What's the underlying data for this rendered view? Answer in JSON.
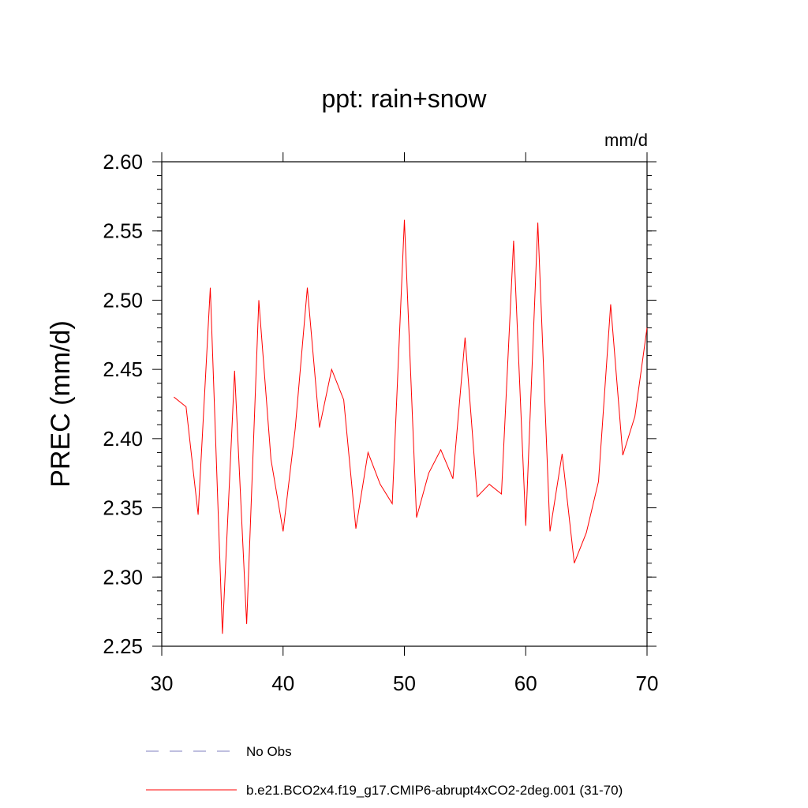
{
  "chart_data": {
    "type": "line",
    "title": "ppt: rain+snow",
    "units_label": "mm/d",
    "ylabel": "PREC  (mm/d)",
    "xlabel": "",
    "xlim": [
      30,
      70
    ],
    "ylim": [
      2.25,
      2.6
    ],
    "x_ticks": [
      30,
      40,
      50,
      60,
      70
    ],
    "y_ticks": [
      2.25,
      2.3,
      2.35,
      2.4,
      2.45,
      2.5,
      2.55,
      2.6
    ],
    "grid": false,
    "legend_position": "bottom",
    "series": [
      {
        "name": "No Obs",
        "color": "#7f7fbf",
        "style": "dashed",
        "x": [],
        "values": []
      },
      {
        "name": "b.e21.BCO2x4.f19_g17.CMIP6-abrupt4xCO2-2deg.001 (31-70)",
        "color": "#ff0000",
        "style": "solid",
        "x": [
          31,
          32,
          33,
          34,
          35,
          36,
          37,
          38,
          39,
          40,
          41,
          42,
          43,
          44,
          45,
          46,
          47,
          48,
          49,
          50,
          51,
          52,
          53,
          54,
          55,
          56,
          57,
          58,
          59,
          60,
          61,
          62,
          63,
          64,
          65,
          66,
          67,
          68,
          69,
          70
        ],
        "values": [
          2.43,
          2.423,
          2.345,
          2.509,
          2.259,
          2.449,
          2.266,
          2.5,
          2.385,
          2.333,
          2.407,
          2.509,
          2.408,
          2.45,
          2.428,
          2.335,
          2.39,
          2.367,
          2.353,
          2.558,
          2.343,
          2.375,
          2.392,
          2.371,
          2.473,
          2.358,
          2.367,
          2.36,
          2.543,
          2.337,
          2.556,
          2.333,
          2.389,
          2.31,
          2.332,
          2.369,
          2.497,
          2.388,
          2.416,
          2.48
        ]
      }
    ]
  }
}
